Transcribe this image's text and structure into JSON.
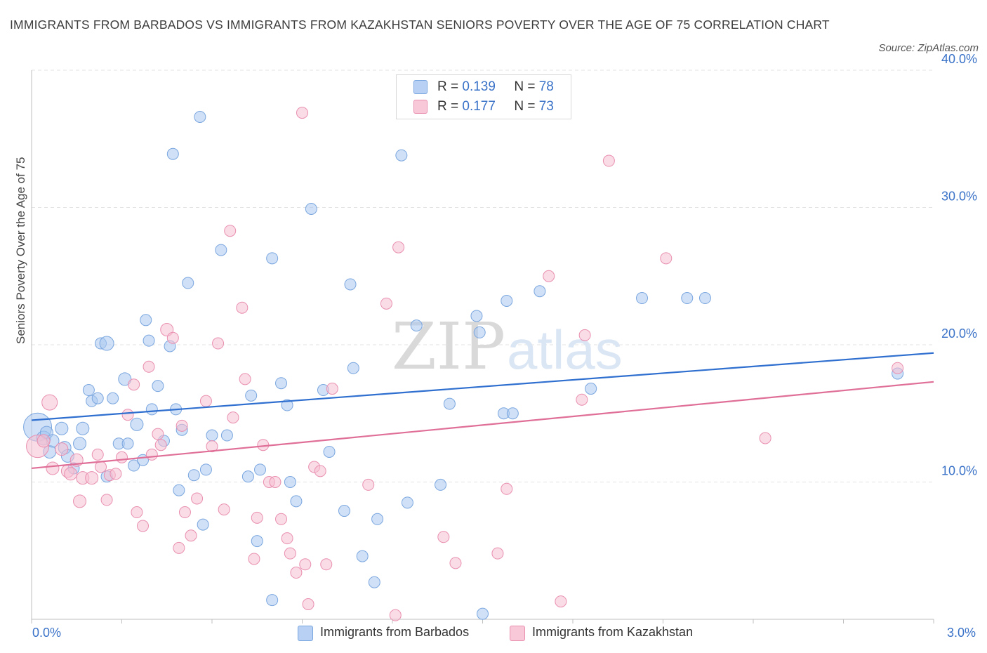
{
  "title": "IMMIGRANTS FROM BARBADOS VS IMMIGRANTS FROM KAZAKHSTAN SENIORS POVERTY OVER THE AGE OF 75 CORRELATION CHART",
  "source": "Source: ZipAtlas.com",
  "watermark": {
    "zip": "ZIP",
    "atlas": "atlas"
  },
  "legend": {
    "barbados": {
      "r_label": "R = ",
      "r_value": "0.139",
      "n_label": "N = ",
      "n_value": "78"
    },
    "kazakhstan": {
      "r_label": "R = ",
      "r_value": "0.177",
      "n_label": "N = ",
      "n_value": "73"
    }
  },
  "colors": {
    "barbados_fill": "#aac8f0",
    "barbados_stroke": "#7aa6df",
    "barbados_line": "#2f6fcf",
    "kazakhstan_fill": "#f6bfd2",
    "kazakhstan_stroke": "#e98fb0",
    "kazakhstan_line": "#e06f98",
    "tick_label": "#3a72c8",
    "grid": "#e3e3e3"
  },
  "chart_data": {
    "type": "scatter",
    "title": "IMMIGRANTS FROM BARBADOS VS IMMIGRANTS FROM KAZAKHSTAN SENIORS POVERTY OVER THE AGE OF 75 CORRELATION CHART",
    "xlabel": "",
    "ylabel": "Seniors Poverty Over the Age of 75",
    "xlim": [
      0,
      3.0
    ],
    "ylim": [
      0,
      40
    ],
    "x_tick_labels": [
      "0.0%",
      "3.0%"
    ],
    "y_ticks": [
      10,
      20,
      30,
      40
    ],
    "y_tick_labels": [
      "10.0%",
      "20.0%",
      "30.0%",
      "40.0%"
    ],
    "grid": true,
    "legend_position": "top-center",
    "series": [
      {
        "name": "Immigrants from Barbados",
        "trend": {
          "x": [
            0,
            3.0
          ],
          "y": [
            14.5,
            19.4
          ]
        },
        "points": [
          [
            0.02,
            14.0,
            20
          ],
          [
            0.04,
            13.2,
            10
          ],
          [
            0.05,
            13.6,
            9
          ],
          [
            0.06,
            12.2,
            9
          ],
          [
            0.07,
            13.0,
            9
          ],
          [
            0.1,
            13.9,
            9
          ],
          [
            0.11,
            12.5,
            9
          ],
          [
            0.12,
            11.9,
            9
          ],
          [
            0.14,
            11.0,
            8
          ],
          [
            0.16,
            12.8,
            9
          ],
          [
            0.17,
            13.9,
            9
          ],
          [
            0.19,
            16.7,
            8
          ],
          [
            0.2,
            15.9,
            8
          ],
          [
            0.22,
            16.1,
            8
          ],
          [
            0.23,
            20.1,
            8
          ],
          [
            0.25,
            20.1,
            10
          ],
          [
            0.25,
            10.4,
            8
          ],
          [
            0.27,
            16.1,
            8
          ],
          [
            0.29,
            12.8,
            8
          ],
          [
            0.31,
            17.5,
            9
          ],
          [
            0.32,
            12.8,
            8
          ],
          [
            0.34,
            11.2,
            8
          ],
          [
            0.35,
            14.2,
            9
          ],
          [
            0.37,
            11.6,
            8
          ],
          [
            0.38,
            21.8,
            8
          ],
          [
            0.39,
            20.3,
            8
          ],
          [
            0.4,
            15.3,
            8
          ],
          [
            0.42,
            17.0,
            8
          ],
          [
            0.44,
            13.0,
            8
          ],
          [
            0.46,
            19.9,
            8
          ],
          [
            0.47,
            33.9,
            8
          ],
          [
            0.48,
            15.3,
            8
          ],
          [
            0.49,
            9.4,
            8
          ],
          [
            0.5,
            13.8,
            8
          ],
          [
            0.52,
            24.5,
            8
          ],
          [
            0.54,
            10.5,
            8
          ],
          [
            0.56,
            36.6,
            8
          ],
          [
            0.57,
            6.9,
            8
          ],
          [
            0.58,
            10.9,
            8
          ],
          [
            0.6,
            13.4,
            8
          ],
          [
            0.63,
            26.9,
            8
          ],
          [
            0.65,
            13.4,
            8
          ],
          [
            0.72,
            10.4,
            8
          ],
          [
            0.73,
            16.3,
            8
          ],
          [
            0.75,
            5.7,
            8
          ],
          [
            0.76,
            10.9,
            8
          ],
          [
            0.8,
            1.4,
            8
          ],
          [
            0.8,
            26.3,
            8
          ],
          [
            0.83,
            17.2,
            8
          ],
          [
            0.85,
            15.6,
            8
          ],
          [
            0.86,
            10.0,
            8
          ],
          [
            0.88,
            8.6,
            8
          ],
          [
            0.93,
            29.9,
            8
          ],
          [
            0.97,
            16.7,
            8
          ],
          [
            0.99,
            12.2,
            8
          ],
          [
            1.04,
            7.9,
            8
          ],
          [
            1.06,
            24.4,
            8
          ],
          [
            1.07,
            18.3,
            8
          ],
          [
            1.1,
            4.6,
            8
          ],
          [
            1.14,
            2.7,
            8
          ],
          [
            1.15,
            7.3,
            8
          ],
          [
            1.23,
            33.8,
            8
          ],
          [
            1.25,
            8.5,
            8
          ],
          [
            1.28,
            21.4,
            8
          ],
          [
            1.36,
            9.8,
            8
          ],
          [
            1.39,
            15.7,
            8
          ],
          [
            1.48,
            22.1,
            8
          ],
          [
            1.49,
            20.9,
            8
          ],
          [
            1.5,
            0.4,
            8
          ],
          [
            1.57,
            15.0,
            8
          ],
          [
            1.58,
            23.2,
            8
          ],
          [
            1.6,
            15.0,
            8
          ],
          [
            1.69,
            23.9,
            8
          ],
          [
            1.86,
            16.8,
            8
          ],
          [
            2.18,
            23.4,
            8
          ],
          [
            2.24,
            23.4,
            8
          ],
          [
            2.88,
            17.9,
            8
          ],
          [
            2.03,
            23.4,
            8
          ]
        ]
      },
      {
        "name": "Immigrants from Kazakhstan",
        "trend": {
          "x": [
            0,
            3.0
          ],
          "y": [
            11.0,
            17.3
          ]
        },
        "points": [
          [
            0.02,
            12.6,
            16
          ],
          [
            0.04,
            13.0,
            9
          ],
          [
            0.06,
            15.8,
            11
          ],
          [
            0.07,
            11.0,
            9
          ],
          [
            0.1,
            12.4,
            9
          ],
          [
            0.12,
            10.8,
            9
          ],
          [
            0.13,
            10.6,
            9
          ],
          [
            0.15,
            11.6,
            9
          ],
          [
            0.16,
            8.6,
            9
          ],
          [
            0.17,
            10.3,
            9
          ],
          [
            0.2,
            10.3,
            9
          ],
          [
            0.22,
            12.0,
            8
          ],
          [
            0.23,
            11.1,
            8
          ],
          [
            0.25,
            8.7,
            8
          ],
          [
            0.26,
            10.5,
            8
          ],
          [
            0.28,
            10.6,
            8
          ],
          [
            0.3,
            11.8,
            8
          ],
          [
            0.32,
            14.9,
            8
          ],
          [
            0.34,
            17.1,
            8
          ],
          [
            0.35,
            7.8,
            8
          ],
          [
            0.37,
            6.8,
            8
          ],
          [
            0.39,
            18.4,
            8
          ],
          [
            0.4,
            12.0,
            8
          ],
          [
            0.42,
            13.5,
            8
          ],
          [
            0.43,
            12.7,
            8
          ],
          [
            0.45,
            21.1,
            9
          ],
          [
            0.47,
            20.5,
            8
          ],
          [
            0.49,
            5.2,
            8
          ],
          [
            0.5,
            14.1,
            8
          ],
          [
            0.51,
            7.8,
            8
          ],
          [
            0.53,
            6.1,
            8
          ],
          [
            0.55,
            8.8,
            8
          ],
          [
            0.58,
            15.9,
            8
          ],
          [
            0.6,
            12.6,
            8
          ],
          [
            0.62,
            20.1,
            8
          ],
          [
            0.64,
            8.0,
            8
          ],
          [
            0.66,
            28.3,
            8
          ],
          [
            0.67,
            14.7,
            8
          ],
          [
            0.7,
            22.7,
            8
          ],
          [
            0.71,
            17.5,
            8
          ],
          [
            0.74,
            4.4,
            8
          ],
          [
            0.75,
            7.4,
            8
          ],
          [
            0.77,
            12.7,
            8
          ],
          [
            0.79,
            10.0,
            8
          ],
          [
            0.81,
            10.0,
            8
          ],
          [
            0.83,
            7.3,
            8
          ],
          [
            0.85,
            5.9,
            8
          ],
          [
            0.86,
            4.8,
            8
          ],
          [
            0.88,
            3.4,
            8
          ],
          [
            0.9,
            36.9,
            8
          ],
          [
            0.91,
            4.0,
            8
          ],
          [
            0.92,
            1.1,
            8
          ],
          [
            0.94,
            11.1,
            8
          ],
          [
            0.96,
            10.8,
            8
          ],
          [
            0.98,
            4.0,
            8
          ],
          [
            1.0,
            16.8,
            8
          ],
          [
            1.12,
            9.8,
            8
          ],
          [
            1.18,
            23.0,
            8
          ],
          [
            1.21,
            0.3,
            8
          ],
          [
            1.22,
            27.1,
            8
          ],
          [
            1.37,
            6.0,
            8
          ],
          [
            1.41,
            4.1,
            8
          ],
          [
            1.55,
            4.8,
            8
          ],
          [
            1.58,
            9.5,
            8
          ],
          [
            1.72,
            25.0,
            8
          ],
          [
            1.76,
            1.3,
            8
          ],
          [
            1.83,
            16.0,
            8
          ],
          [
            1.84,
            20.7,
            8
          ],
          [
            1.92,
            33.4,
            8
          ],
          [
            2.11,
            26.3,
            8
          ],
          [
            2.44,
            13.2,
            8
          ],
          [
            2.88,
            18.3,
            8
          ],
          [
            2.08,
            24.7,
            0
          ]
        ]
      }
    ]
  },
  "x_axis": {
    "min_label": "0.0%",
    "max_label": "3.0%"
  }
}
